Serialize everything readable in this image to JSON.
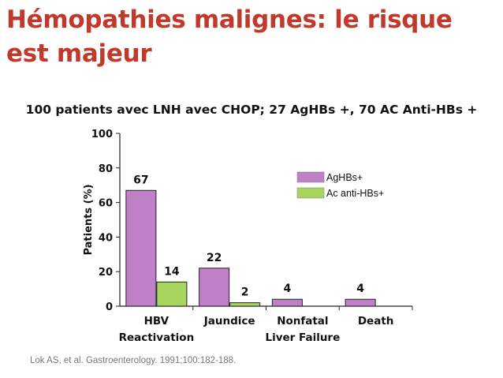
{
  "slide": {
    "title": "Hémopathies malignes: le risque est majeur",
    "citation": "Lok AS, et al. Gastroenterology. 1991;100:182-188."
  },
  "colors": {
    "title": "#c0392b",
    "agHBs": "#bf80c8",
    "antiHBs": "#a8d65c"
  },
  "chart_data": {
    "type": "bar",
    "title": "100 patients avec LNH avec CHOP; 27 AgHBs +, 70 AC Anti-HBs +",
    "xlabel": "",
    "ylabel": "Patients (%)",
    "ylim": [
      0,
      100
    ],
    "yticks": [
      0,
      20,
      40,
      60,
      80,
      100
    ],
    "categories": [
      [
        "HBV",
        "Reactivation"
      ],
      [
        "Jaundice"
      ],
      [
        "Nonfatal",
        "Liver Failure"
      ],
      [
        "Death"
      ]
    ],
    "series": [
      {
        "name": "AgHBs+",
        "values": [
          67,
          22,
          4,
          4
        ],
        "labels": [
          "67",
          "22",
          "4",
          "4"
        ],
        "color": "#bf80c8"
      },
      {
        "name": "Ac anti-HBs+",
        "values": [
          14,
          2,
          null,
          null
        ],
        "labels": [
          "14",
          "2",
          "",
          ""
        ],
        "color": "#a8d65c"
      }
    ],
    "grid": false,
    "legend_position": "top-right"
  }
}
